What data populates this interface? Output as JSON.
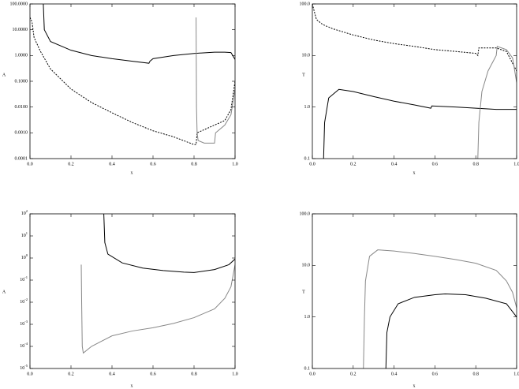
{
  "chart_data": [
    {
      "type": "line",
      "ylabel": "A",
      "xlabel": "x",
      "log_y": true,
      "xlim": [
        0,
        1
      ],
      "xticks": [
        {
          "value": 0,
          "label": "0.0"
        },
        0.2,
        0.4,
        0.6,
        0.8,
        {
          "value": 1,
          "label": "1.0"
        }
      ],
      "ylim": [
        0.0001,
        100
      ],
      "yticks": [
        {
          "value": 0.0001,
          "label": "0.0001"
        },
        {
          "value": 0.001,
          "label": "0.0010"
        },
        {
          "value": 0.01,
          "label": "0.0100"
        },
        {
          "value": 0.1,
          "label": "0.1000"
        },
        {
          "value": 1,
          "label": "1.0000"
        },
        {
          "value": 10,
          "label": "10.0000"
        },
        {
          "value": 100,
          "label": "100.0000"
        }
      ],
      "series": [
        {
          "color": "#000000",
          "dash": false,
          "x": [
            0.065,
            0.07,
            0.1,
            0.2,
            0.3,
            0.4,
            0.5,
            0.58,
            0.585,
            0.6,
            0.7,
            0.8,
            0.9,
            0.95,
            0.98,
            1.0
          ],
          "values": [
            100,
            10,
            3.5,
            1.6,
            1.0,
            0.75,
            0.6,
            0.5,
            0.6,
            0.75,
            1.0,
            1.2,
            1.35,
            1.35,
            1.3,
            0.7
          ]
        },
        {
          "color": "#000000",
          "dash": true,
          "x": [
            0.0,
            0.01,
            0.02,
            0.05,
            0.1,
            0.2,
            0.3,
            0.4,
            0.5,
            0.6,
            0.7,
            0.8,
            0.81,
            0.815,
            0.9,
            0.95,
            0.98,
            1.0
          ],
          "values": [
            30,
            20,
            5,
            1.5,
            0.3,
            0.05,
            0.015,
            0.006,
            0.0025,
            0.0012,
            0.0007,
            0.00035,
            0.00035,
            0.001,
            0.002,
            0.003,
            0.008,
            0.1
          ]
        },
        {
          "color": "#888888",
          "dash": false,
          "x": [
            0.81,
            0.812,
            0.815,
            0.82,
            0.85,
            0.9,
            0.905,
            0.95,
            0.98,
            1.0
          ],
          "values": [
            30,
            0.01,
            0.001,
            0.0005,
            0.0004,
            0.0004,
            0.001,
            0.002,
            0.005,
            0.05
          ]
        }
      ]
    },
    {
      "type": "line",
      "ylabel": "T",
      "xlabel": "x",
      "log_y": true,
      "xlim": [
        0,
        1
      ],
      "xticks": [
        {
          "value": 0,
          "label": "0.0"
        },
        0.2,
        0.4,
        0.6,
        0.8,
        {
          "value": 1,
          "label": "1.0"
        }
      ],
      "ylim": [
        0.1,
        100
      ],
      "yticks": [
        0.1,
        {
          "value": 1,
          "label": "1.0"
        },
        {
          "value": 10,
          "label": "10.0"
        },
        {
          "value": 100,
          "label": "100.0"
        }
      ],
      "series": [
        {
          "color": "#000000",
          "dash": true,
          "x": [
            0.0,
            0.01,
            0.02,
            0.05,
            0.1,
            0.2,
            0.3,
            0.4,
            0.5,
            0.6,
            0.7,
            0.8,
            0.81,
            0.815,
            0.9,
            0.95,
            1.0
          ],
          "values": [
            100,
            70,
            50,
            40,
            33,
            25,
            20,
            17,
            15,
            13,
            12,
            11,
            10,
            14,
            14,
            12,
            5
          ]
        },
        {
          "color": "#000000",
          "dash": false,
          "x": [
            0.055,
            0.06,
            0.08,
            0.13,
            0.2,
            0.3,
            0.4,
            0.5,
            0.58,
            0.585,
            0.7,
            0.8,
            0.9,
            1.0
          ],
          "values": [
            0.1,
            0.5,
            1.5,
            2.2,
            2.0,
            1.6,
            1.3,
            1.1,
            0.95,
            1.05,
            1.0,
            0.95,
            0.9,
            0.9
          ]
        },
        {
          "color": "#888888",
          "dash": false,
          "x": [
            0.81,
            0.815,
            0.83,
            0.86,
            0.9,
            0.905,
            0.95,
            0.98,
            1.0
          ],
          "values": [
            0.1,
            0.5,
            2,
            5,
            10,
            15,
            13,
            9,
            3
          ]
        }
      ]
    },
    {
      "type": "line",
      "ylabel": "A",
      "xlabel": "x",
      "log_y": true,
      "xlim": [
        0,
        1
      ],
      "xticks": [
        {
          "value": 0,
          "label": "0.0"
        },
        0.2,
        0.4,
        0.6,
        0.8,
        {
          "value": 1,
          "label": "1.0"
        }
      ],
      "ylim": [
        1e-05,
        100
      ],
      "yticks": [
        {
          "value": 1e-05,
          "label": "10",
          "exponent": "-5"
        },
        {
          "value": 0.0001,
          "label": "10",
          "exponent": "-4"
        },
        {
          "value": 0.001,
          "label": "10",
          "exponent": "-3"
        },
        {
          "value": 0.01,
          "label": "10",
          "exponent": "-2"
        },
        {
          "value": 0.1,
          "label": "10",
          "exponent": "-1"
        },
        {
          "value": 1,
          "label": "10",
          "exponent": "0"
        },
        {
          "value": 10,
          "label": "10",
          "exponent": "1"
        },
        {
          "value": 100,
          "label": "10",
          "exponent": "2"
        }
      ],
      "series": [
        {
          "color": "#000000",
          "dash": false,
          "x": [
            0.36,
            0.365,
            0.38,
            0.45,
            0.55,
            0.65,
            0.75,
            0.8,
            0.9,
            0.97,
            1.0
          ],
          "values": [
            100,
            5,
            1.5,
            0.6,
            0.35,
            0.27,
            0.23,
            0.22,
            0.3,
            0.5,
            0.9
          ]
        },
        {
          "color": "#888888",
          "dash": false,
          "x": [
            0.25,
            0.252,
            0.255,
            0.26,
            0.3,
            0.4,
            0.5,
            0.6,
            0.7,
            0.8,
            0.9,
            0.95,
            0.98,
            1.0
          ],
          "values": [
            0.5,
            0.01,
            0.0001,
            5e-05,
            0.0001,
            0.0003,
            0.0005,
            0.0007,
            0.0011,
            0.002,
            0.005,
            0.015,
            0.05,
            0.5
          ]
        }
      ]
    },
    {
      "type": "line",
      "ylabel": "T",
      "xlabel": "x",
      "log_y": true,
      "xlim": [
        0,
        1
      ],
      "xticks": [
        {
          "value": 0,
          "label": "0.0"
        },
        0.2,
        0.4,
        0.6,
        0.8,
        {
          "value": 1,
          "label": "1.0"
        }
      ],
      "ylim": [
        0.1,
        100
      ],
      "yticks": [
        0.1,
        {
          "value": 1,
          "label": "1.0"
        },
        {
          "value": 10,
          "label": "10.0"
        },
        {
          "value": 100,
          "label": "100.0"
        }
      ],
      "series": [
        {
          "color": "#888888",
          "dash": false,
          "x": [
            0.25,
            0.255,
            0.26,
            0.28,
            0.32,
            0.4,
            0.5,
            0.6,
            0.7,
            0.8,
            0.9,
            0.95,
            0.98,
            1.0
          ],
          "values": [
            0.1,
            1,
            5,
            15,
            20,
            19,
            17,
            15,
            13,
            11,
            8,
            5,
            3,
            1.5
          ]
        },
        {
          "color": "#000000",
          "dash": false,
          "x": [
            0.36,
            0.365,
            0.38,
            0.42,
            0.5,
            0.6,
            0.65,
            0.75,
            0.85,
            0.95,
            1.0
          ],
          "values": [
            0.1,
            0.5,
            1,
            1.8,
            2.4,
            2.7,
            2.8,
            2.7,
            2.3,
            1.8,
            1.0
          ]
        }
      ]
    }
  ]
}
